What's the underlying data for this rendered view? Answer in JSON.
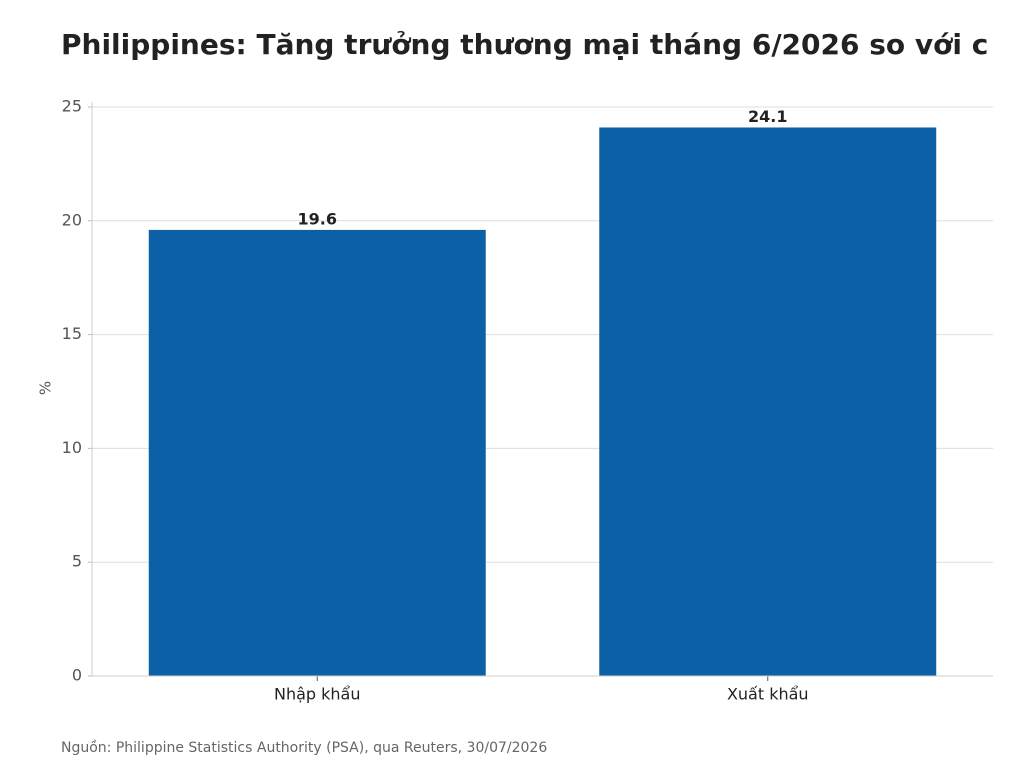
{
  "chart_data": {
    "type": "bar",
    "title": "Philippines: Tăng trưởng thương mại tháng 6/2026 so với c",
    "y_label": "%",
    "categories": [
      "Nhập khẩu",
      "Xuất khẩu"
    ],
    "values": [
      19.6,
      24.1
    ],
    "color": "#0c61a6",
    "ylim": [
      0,
      25
    ],
    "yticks": [
      0,
      5,
      10,
      15,
      20,
      25
    ],
    "grid": true,
    "source": "Nguồn: Philippine Statistics Authority (PSA), qua Reuters, 30/07/2026"
  }
}
